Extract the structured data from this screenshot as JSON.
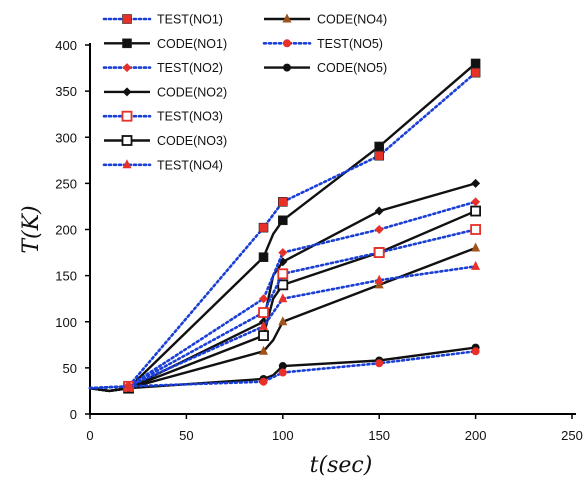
{
  "chart_data": {
    "type": "line",
    "title": "",
    "xlabel": "t(sec)",
    "ylabel": "T(K)",
    "xlim": [
      0,
      250
    ],
    "ylim": [
      0,
      400
    ],
    "xticks": [
      0,
      50,
      100,
      150,
      200,
      250
    ],
    "yticks": [
      0,
      50,
      100,
      150,
      200,
      250,
      300,
      350,
      400
    ],
    "grid": false,
    "legend_position": "top-left",
    "series": [
      {
        "name": "TEST(NO1)",
        "kind": "test",
        "color": "#1a3fd6",
        "marker": "square",
        "marker_color": "#e8302a",
        "x": [
          0,
          20,
          90,
          100,
          150,
          200
        ],
        "y": [
          28,
          30,
          202,
          230,
          280,
          370
        ]
      },
      {
        "name": "CODE(NO1)",
        "kind": "code",
        "color": "#111111",
        "marker": "square",
        "marker_color": "#111111",
        "x": [
          0,
          10,
          20,
          90,
          95,
          100,
          150,
          200
        ],
        "y": [
          28,
          25,
          28,
          170,
          195,
          210,
          290,
          380
        ]
      },
      {
        "name": "TEST(NO2)",
        "kind": "test",
        "color": "#1a3fd6",
        "marker": "diamond",
        "marker_color": "#e8302a",
        "x": [
          0,
          20,
          90,
          100,
          150,
          200
        ],
        "y": [
          28,
          30,
          125,
          175,
          200,
          230
        ]
      },
      {
        "name": "CODE(NO2)",
        "kind": "code",
        "color": "#111111",
        "marker": "diamond",
        "marker_color": "#111111",
        "x": [
          0,
          10,
          20,
          90,
          95,
          100,
          150,
          200
        ],
        "y": [
          28,
          25,
          28,
          100,
          150,
          165,
          220,
          250
        ]
      },
      {
        "name": "TEST(NO3)",
        "kind": "test",
        "color": "#1a3fd6",
        "marker": "square-open",
        "marker_color": "#e8302a",
        "x": [
          0,
          20,
          90,
          100,
          150,
          200
        ],
        "y": [
          28,
          30,
          110,
          152,
          175,
          200
        ]
      },
      {
        "name": "CODE(NO3)",
        "kind": "code",
        "color": "#111111",
        "marker": "square-open",
        "marker_color": "#111111",
        "x": [
          0,
          10,
          20,
          90,
          95,
          100,
          150,
          200
        ],
        "y": [
          28,
          25,
          28,
          85,
          125,
          140,
          175,
          220
        ]
      },
      {
        "name": "TEST(NO4)",
        "kind": "test",
        "color": "#1a3fd6",
        "marker": "triangle",
        "marker_color": "#e8302a",
        "x": [
          0,
          20,
          90,
          100,
          150,
          200
        ],
        "y": [
          28,
          30,
          95,
          125,
          145,
          160
        ]
      },
      {
        "name": "CODE(NO4)",
        "kind": "code",
        "color": "#111111",
        "marker": "triangle",
        "marker_color": "#a0521b",
        "x": [
          0,
          10,
          20,
          90,
          95,
          100,
          150,
          200
        ],
        "y": [
          28,
          25,
          28,
          68,
          80,
          100,
          140,
          180
        ]
      },
      {
        "name": "TEST(NO5)",
        "kind": "test",
        "color": "#1a3fd6",
        "marker": "circle",
        "marker_color": "#e8302a",
        "x": [
          0,
          20,
          90,
          100,
          150,
          200
        ],
        "y": [
          28,
          30,
          35,
          45,
          55,
          68
        ]
      },
      {
        "name": "CODE(NO5)",
        "kind": "code",
        "color": "#111111",
        "marker": "circle",
        "marker_color": "#111111",
        "x": [
          0,
          10,
          20,
          90,
          95,
          100,
          150,
          200
        ],
        "y": [
          28,
          25,
          28,
          38,
          42,
          52,
          58,
          72
        ]
      }
    ]
  }
}
